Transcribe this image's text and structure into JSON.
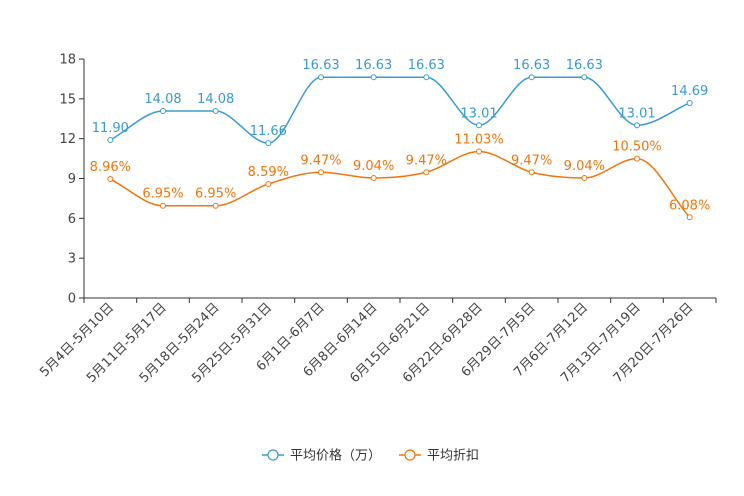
{
  "chart_data": {
    "type": "line",
    "title": "",
    "xlabel": "",
    "ylabel": "",
    "ylim": [
      0,
      18
    ],
    "yticks": [
      "0",
      "3",
      "6",
      "9",
      "12",
      "15",
      "18"
    ],
    "categories": [
      "5月4日-5月10日",
      "5月11日-5月17日",
      "5月18日-5月24日",
      "5月25日-5月31日",
      "6月1日-6月7日",
      "6月8日-6月14日",
      "6月15日-6月21日",
      "6月22日-6月28日",
      "6月29日-7月5日",
      "7月6日-7月12日",
      "7月13日-7月19日",
      "7月20日-7月26日"
    ],
    "series": [
      {
        "name": "平均价格（万）",
        "color": "#3a9bd1",
        "values": [
          11.9,
          14.08,
          14.08,
          11.66,
          16.63,
          16.63,
          16.63,
          13.01,
          16.63,
          16.63,
          13.01,
          14.69
        ],
        "labels": [
          "11.90",
          "14.08",
          "14.08",
          "11.66",
          "16.63",
          "16.63",
          "16.63",
          "13.01",
          "16.63",
          "16.63",
          "13.01",
          "14.69"
        ]
      },
      {
        "name": "平均折扣",
        "color": "#f0750c",
        "values": [
          8.96,
          6.95,
          6.95,
          8.59,
          9.47,
          9.04,
          9.47,
          11.03,
          9.47,
          9.04,
          10.5,
          6.08
        ],
        "labels": [
          "8.96%",
          "6.95%",
          "6.95%",
          "8.59%",
          "9.47%",
          "9.04%",
          "9.47%",
          "11.03%",
          "9.47%",
          "9.04%",
          "10.50%",
          "6.08%"
        ]
      }
    ],
    "legend_position": "bottom-center",
    "grid": false
  }
}
